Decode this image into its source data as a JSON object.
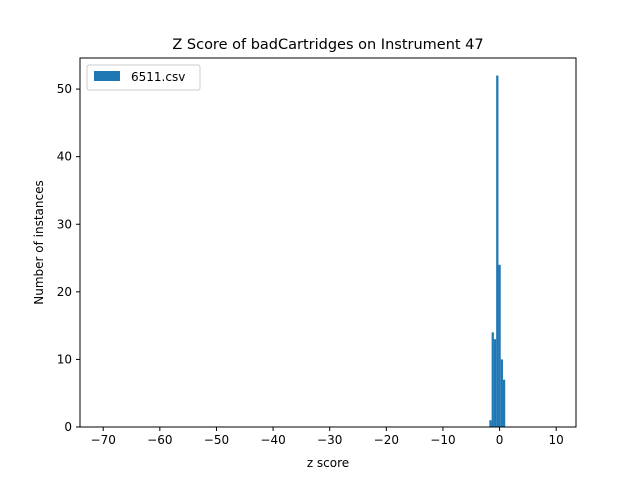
{
  "chart_data": {
    "type": "bar",
    "title": "Z Score of badCartridges on Instrument 47",
    "xlabel": "z score",
    "ylabel": "Number of instances",
    "xlim": [
      -74.1,
      13.5
    ],
    "ylim": [
      0,
      54.6
    ],
    "x_ticks": [
      -70,
      -60,
      -50,
      -40,
      -30,
      -20,
      -10,
      0,
      10
    ],
    "x_tick_labels": [
      "−70",
      "−60",
      "−50",
      "−40",
      "−30",
      "−20",
      "−10",
      "0",
      "10"
    ],
    "y_ticks": [
      0,
      10,
      20,
      30,
      40,
      50
    ],
    "y_tick_labels": [
      "0",
      "10",
      "20",
      "30",
      "40",
      "50"
    ],
    "grid": false,
    "legend_position": "upper-left",
    "series": [
      {
        "name": "6511.csv",
        "color": "#1f77b4",
        "bins": [
          {
            "x0": -1.8,
            "x1": -1.4,
            "value": 1
          },
          {
            "x0": -1.4,
            "x1": -1.0,
            "value": 14
          },
          {
            "x0": -1.0,
            "x1": -0.6,
            "value": 13
          },
          {
            "x0": -0.6,
            "x1": -0.2,
            "value": 52
          },
          {
            "x0": -0.2,
            "x1": 0.2,
            "value": 24
          },
          {
            "x0": 0.2,
            "x1": 0.6,
            "value": 10
          },
          {
            "x0": 0.6,
            "x1": 1.0,
            "value": 7
          }
        ]
      }
    ]
  }
}
